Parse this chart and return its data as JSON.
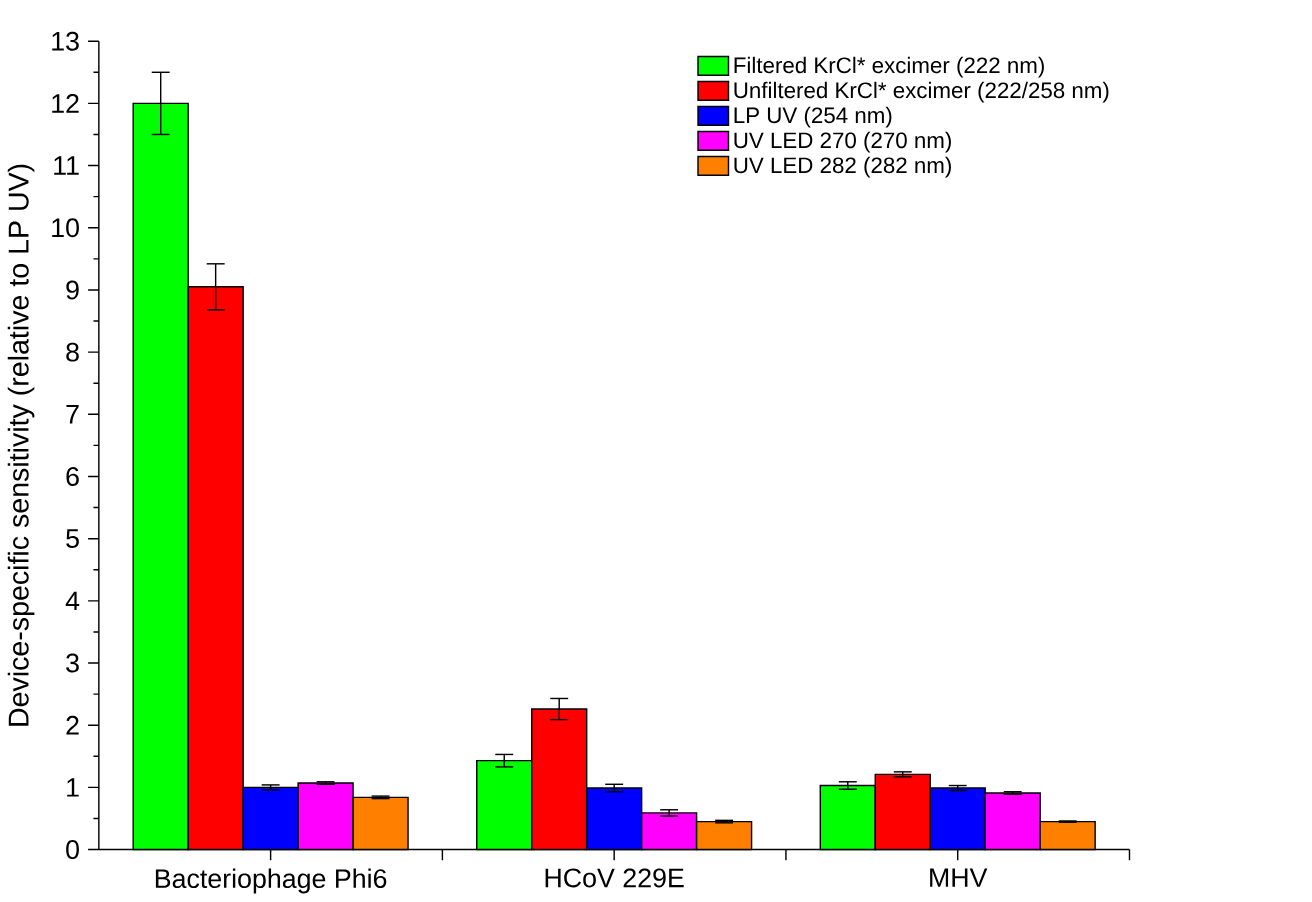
{
  "chart_data": {
    "type": "bar",
    "ylabel": "Device-specific sensitivity (relative to LP UV)",
    "categories": [
      "Bacteriophage Phi6",
      "HCoV 229E",
      "MHV"
    ],
    "series": [
      {
        "name": "Filtered KrCl* excimer (222 nm)",
        "color": "#00ff00",
        "values": [
          12.0,
          1.43,
          1.03
        ],
        "errors": [
          0.5,
          0.1,
          0.06
        ]
      },
      {
        "name": "Unfiltered KrCl* excimer (222/258 nm)",
        "color": "#ff0000",
        "values": [
          9.05,
          2.26,
          1.21
        ],
        "errors": [
          0.37,
          0.17,
          0.04
        ]
      },
      {
        "name": "LP UV (254 nm)",
        "color": "#0000ff",
        "values": [
          1.0,
          0.99,
          0.99
        ],
        "errors": [
          0.04,
          0.06,
          0.04
        ]
      },
      {
        "name": "UV LED 270 (270 nm)",
        "color": "#ff00ff",
        "values": [
          1.07,
          0.59,
          0.91
        ],
        "errors": [
          0.02,
          0.05,
          0.02
        ]
      },
      {
        "name": "UV LED 282 (282 nm)",
        "color": "#ff8000",
        "values": [
          0.84,
          0.45,
          0.45
        ],
        "errors": [
          0.02,
          0.02,
          0.01
        ]
      }
    ],
    "ylim": [
      0,
      13
    ],
    "yticks": [
      0,
      1,
      2,
      3,
      4,
      5,
      6,
      7,
      8,
      9,
      10,
      11,
      12,
      13
    ],
    "legend": "top right",
    "grid": false
  }
}
